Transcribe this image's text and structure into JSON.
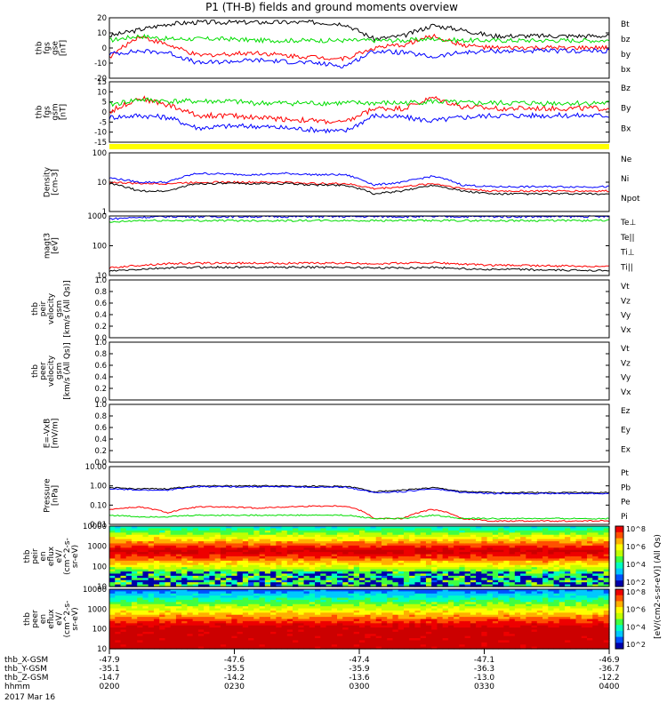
{
  "title": "P1 (TH-B) fields and ground moments overview",
  "colors": {
    "black": "#000000",
    "red": "#ff0000",
    "green": "#00dd00",
    "blue": "#0000ff",
    "yellow": "#ffff00"
  },
  "chart_data": [
    {
      "type": "line",
      "panel": "fgs_gse",
      "ylabel_lines": [
        "thb",
        "fgs",
        "gse",
        "[nT]"
      ],
      "ylim": [
        -20,
        20
      ],
      "yticks": [
        "20",
        "10",
        "0",
        "-10",
        "-20"
      ],
      "series": [
        {
          "name": "Bt",
          "color": "black",
          "values": [
            8,
            12,
            16,
            17,
            17,
            17,
            17,
            17,
            16,
            6,
            8,
            15,
            12,
            8,
            8,
            8,
            8,
            8
          ]
        },
        {
          "name": "bz",
          "color": "red",
          "values": [
            -6,
            8,
            2,
            -5,
            -4,
            -3,
            -5,
            -6,
            -7,
            0,
            2,
            8,
            2,
            0,
            0,
            0,
            0,
            0
          ]
        },
        {
          "name": "by",
          "color": "green",
          "values": [
            5,
            8,
            6,
            6,
            6,
            5,
            5,
            5,
            5,
            5,
            5,
            6,
            5,
            5,
            5,
            5,
            5,
            5
          ]
        },
        {
          "name": "bx",
          "color": "blue",
          "values": [
            -4,
            -2,
            -3,
            -10,
            -9,
            -8,
            -9,
            -10,
            -12,
            -2,
            -3,
            -6,
            -3,
            -2,
            -2,
            -2,
            -2,
            -2
          ]
        }
      ]
    },
    {
      "type": "line",
      "panel": "fgs_gsm",
      "ylabel_lines": [
        "thb",
        "fgs",
        "gsm",
        "[nT]"
      ],
      "ylim": [
        -17,
        17
      ],
      "yticks": [
        "15",
        "10",
        "5",
        "0",
        "-5",
        "-10",
        "-15"
      ],
      "series": [
        {
          "name": "Bz",
          "color": "red",
          "values": [
            0,
            8,
            4,
            -2,
            -2,
            -3,
            -4,
            -5,
            -6,
            2,
            2,
            8,
            3,
            2,
            2,
            2,
            2,
            2
          ]
        },
        {
          "name": "By",
          "color": "green",
          "values": [
            4,
            7,
            6,
            6,
            6,
            5,
            5,
            5,
            5,
            5,
            5,
            6,
            5,
            5,
            5,
            5,
            5,
            5
          ]
        },
        {
          "name": "Bx",
          "color": "blue",
          "values": [
            -3,
            -2,
            -3,
            -9,
            -8,
            -8,
            -9,
            -10,
            -11,
            -2,
            -3,
            -5,
            -3,
            -2,
            -2,
            -2,
            -2,
            -2
          ]
        }
      ]
    },
    {
      "type": "line",
      "panel": "density",
      "ylabel_lines": [
        "Density",
        "[cm-3]"
      ],
      "ylog": true,
      "ylim": [
        1,
        100
      ],
      "yticks": [
        "100",
        "10",
        "1"
      ],
      "series": [
        {
          "name": "Ne",
          "color": "red",
          "values": [
            10,
            9,
            9,
            10,
            10,
            10,
            10,
            9,
            9,
            6,
            7,
            9,
            6,
            5,
            5,
            5,
            5,
            5
          ]
        },
        {
          "name": "Ni",
          "color": "black",
          "values": [
            9,
            5,
            5,
            9,
            9,
            9,
            9,
            8,
            8,
            4,
            5,
            8,
            5,
            4,
            4,
            4,
            4,
            4
          ]
        },
        {
          "name": "Npot",
          "color": "blue",
          "values": [
            14,
            10,
            10,
            20,
            19,
            18,
            20,
            18,
            18,
            8,
            10,
            16,
            8,
            7,
            7,
            7,
            7,
            7
          ]
        }
      ]
    },
    {
      "type": "line",
      "panel": "temperature",
      "ylabel_lines": [
        "magt3",
        "[eV]"
      ],
      "ylog": true,
      "ylim": [
        10,
        1000
      ],
      "yticks": [
        "1000",
        "100",
        "10"
      ],
      "series": [
        {
          "name": "Te⊥",
          "color": "red",
          "values": [
            18,
            22,
            25,
            26,
            26,
            26,
            26,
            26,
            26,
            25,
            26,
            27,
            24,
            22,
            22,
            21,
            21,
            20
          ]
        },
        {
          "name": "Te||",
          "color": "black",
          "values": [
            14,
            16,
            18,
            19,
            19,
            19,
            19,
            19,
            19,
            18,
            18,
            19,
            17,
            16,
            16,
            15,
            15,
            15
          ]
        },
        {
          "name": "Ti⊥",
          "color": "blue",
          "values": [
            800,
            900,
            950,
            950,
            950,
            950,
            950,
            950,
            950,
            950,
            950,
            950,
            950,
            950,
            950,
            950,
            950,
            950
          ]
        },
        {
          "name": "Ti||",
          "color": "green",
          "values": [
            600,
            700,
            700,
            700,
            700,
            700,
            700,
            700,
            700,
            700,
            700,
            700,
            700,
            700,
            700,
            700,
            700,
            700
          ]
        }
      ]
    },
    {
      "type": "line",
      "panel": "peir_velocity",
      "ylabel_lines": [
        "thb",
        "peir",
        "velocity",
        "gsm",
        "[km/s (All Qs)]"
      ],
      "ylim": [
        0,
        1
      ],
      "yticks": [
        "1.0",
        "0.8",
        "0.6",
        "0.4",
        "0.2",
        "0.0"
      ],
      "series": [
        {
          "name": "Vt",
          "color": "black",
          "values": []
        },
        {
          "name": "Vz",
          "color": "red",
          "values": []
        },
        {
          "name": "Vy",
          "color": "green",
          "values": []
        },
        {
          "name": "Vx",
          "color": "blue",
          "values": []
        }
      ]
    },
    {
      "type": "line",
      "panel": "peer_velocity",
      "ylabel_lines": [
        "thb",
        "peer",
        "velocity",
        "gsm",
        "[km/s (All Qs)]"
      ],
      "ylim": [
        0,
        1
      ],
      "yticks": [
        "1.0",
        "0.8",
        "0.6",
        "0.4",
        "0.2",
        "0.0"
      ],
      "series": [
        {
          "name": "Vt",
          "color": "black",
          "values": []
        },
        {
          "name": "Vz",
          "color": "red",
          "values": []
        },
        {
          "name": "Vy",
          "color": "green",
          "values": []
        },
        {
          "name": "Vx",
          "color": "blue",
          "values": []
        }
      ]
    },
    {
      "type": "line",
      "panel": "efield",
      "ylabel_lines": [
        "E=-VxB",
        "[mV/m]"
      ],
      "ylim": [
        0,
        1
      ],
      "yticks": [
        "1.0",
        "0.8",
        "0.6",
        "0.4",
        "0.2",
        "0.0"
      ],
      "series": [
        {
          "name": "Ez",
          "color": "red",
          "values": []
        },
        {
          "name": "Ey",
          "color": "green",
          "values": []
        },
        {
          "name": "Ex",
          "color": "blue",
          "values": []
        }
      ]
    },
    {
      "type": "line",
      "panel": "pressure",
      "ylabel_lines": [
        "Pressure",
        "[nPa]"
      ],
      "ylog": true,
      "ylim": [
        0.01,
        10
      ],
      "yticks": [
        "10.00",
        "1.00",
        "0.10",
        "0.01"
      ],
      "series": [
        {
          "name": "Pt",
          "color": "black",
          "values": [
            0.8,
            0.7,
            0.7,
            1.0,
            1.0,
            1.0,
            1.0,
            0.95,
            0.95,
            0.5,
            0.6,
            0.8,
            0.5,
            0.45,
            0.45,
            0.45,
            0.45,
            0.45
          ]
        },
        {
          "name": "Pb",
          "color": "red",
          "values": [
            0.06,
            0.08,
            0.04,
            0.08,
            0.08,
            0.07,
            0.08,
            0.09,
            0.09,
            0.02,
            0.02,
            0.06,
            0.02,
            0.015,
            0.015,
            0.015,
            0.015,
            0.015
          ]
        },
        {
          "name": "Pe",
          "color": "green",
          "values": [
            0.03,
            0.025,
            0.025,
            0.03,
            0.03,
            0.03,
            0.03,
            0.03,
            0.03,
            0.02,
            0.02,
            0.03,
            0.02,
            0.02,
            0.02,
            0.02,
            0.02,
            0.02
          ]
        },
        {
          "name": "Pi",
          "color": "blue",
          "values": [
            0.7,
            0.6,
            0.6,
            0.9,
            0.9,
            0.9,
            0.9,
            0.85,
            0.85,
            0.45,
            0.5,
            0.7,
            0.45,
            0.4,
            0.4,
            0.4,
            0.4,
            0.4
          ]
        }
      ]
    },
    {
      "type": "heatmap",
      "panel": "peir_eflux",
      "ylabel_lines": [
        "thb",
        "peir",
        "en",
        "eflux",
        "eV/",
        "(cm^2-s-",
        "sr-eV)"
      ],
      "ylog": true,
      "ylim": [
        5,
        20000
      ],
      "yticks": [
        "10000",
        "1000",
        "100",
        "10"
      ]
    },
    {
      "type": "heatmap",
      "panel": "peer_eflux",
      "ylabel_lines": [
        "thb",
        "peer",
        "en",
        "eflux",
        "eV/",
        "(cm^2-s-",
        "sr-eV)"
      ],
      "ylog": true,
      "ylim": [
        5,
        20000
      ],
      "yticks": [
        "10000",
        "1000",
        "100",
        "10"
      ]
    }
  ],
  "colorbar": {
    "label": "[eV/(cm2-s-sr-eV)] (All Qs)",
    "ticks_top": [
      "10^8",
      "10^6",
      "10^4",
      "10^2"
    ],
    "ticks_bottom": [
      "10^8",
      "10^6",
      "10^4",
      "10^2"
    ]
  },
  "x_axis": {
    "rows": [
      {
        "label": "thb_X-GSM",
        "values": [
          "-47.9",
          "-47.6",
          "-47.4",
          "-47.1",
          "-46.9"
        ]
      },
      {
        "label": "thb_Y-GSM",
        "values": [
          "-35.1",
          "-35.5",
          "-35.9",
          "-36.3",
          "-36.7"
        ]
      },
      {
        "label": "thb_Z-GSM",
        "values": [
          "-14.7",
          "-14.2",
          "-13.6",
          "-13.0",
          "-12.2"
        ]
      },
      {
        "label": "hhmm",
        "values": [
          "0200",
          "0230",
          "0300",
          "0330",
          "0400"
        ]
      }
    ],
    "date": "2017 Mar 16"
  }
}
